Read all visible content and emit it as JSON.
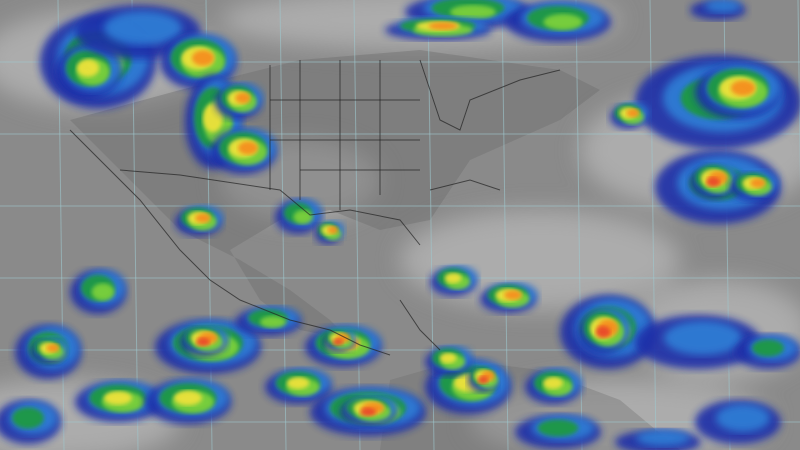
{
  "image": {
    "kind": "infrared satellite composite",
    "colors": {
      "background_gray": "#8a8a8a",
      "cloud_light": "#c8c8c8",
      "land_dark": "#6e6e6e",
      "grid": "#9fc9cf",
      "borders": "#222222",
      "cloud_levels": [
        "#1a2fa8",
        "#2f7fd6",
        "#1e9a3a",
        "#7fd23a",
        "#f2e23a",
        "#f58a1e",
        "#e8452a",
        "#e0457a"
      ]
    }
  }
}
